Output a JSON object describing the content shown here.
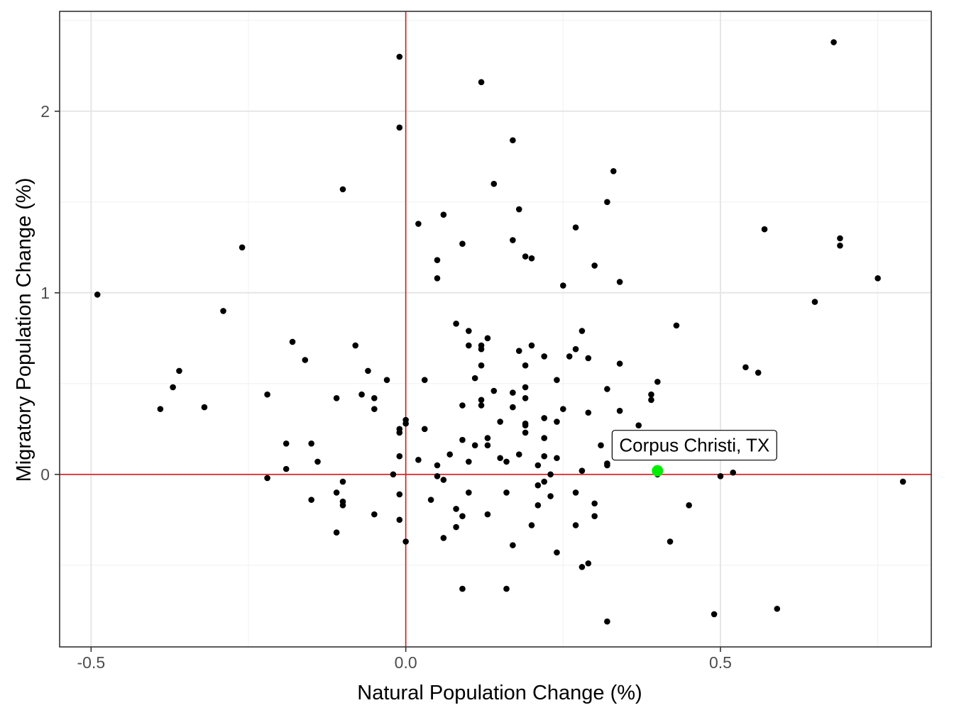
{
  "chart_data": {
    "type": "scatter",
    "xlabel": "Natural Population Change (%)",
    "ylabel": "Migratory Population Change (%)",
    "xlim": [
      -0.55,
      0.835
    ],
    "ylim": [
      -0.95,
      2.55
    ],
    "xticks": [
      -0.5,
      0.0,
      0.5
    ],
    "xtick_labels": [
      "-0.5",
      "0.0",
      "0.5"
    ],
    "yticks": [
      0,
      1,
      2
    ],
    "ytick_labels": [
      "0",
      "1",
      "2"
    ],
    "grid": true,
    "reference_lines": {
      "x": 0,
      "y": 0,
      "color": "#e31a1c"
    },
    "point_color": "#000000",
    "highlight": {
      "label": "Corpus Christi, TX",
      "x": 0.4,
      "y": 0.02,
      "color": "#00ee00"
    },
    "points": [
      [
        0.68,
        2.38
      ],
      [
        -0.01,
        2.3
      ],
      [
        0.12,
        2.16
      ],
      [
        -0.01,
        1.91
      ],
      [
        0.17,
        1.84
      ],
      [
        0.33,
        1.67
      ],
      [
        0.14,
        1.6
      ],
      [
        -0.1,
        1.57
      ],
      [
        0.32,
        1.5
      ],
      [
        0.18,
        1.46
      ],
      [
        0.06,
        1.43
      ],
      [
        0.02,
        1.38
      ],
      [
        0.27,
        1.36
      ],
      [
        0.57,
        1.35
      ],
      [
        0.69,
        1.3
      ],
      [
        0.17,
        1.29
      ],
      [
        0.09,
        1.27
      ],
      [
        0.69,
        1.26
      ],
      [
        -0.26,
        1.25
      ],
      [
        0.19,
        1.2
      ],
      [
        0.2,
        1.19
      ],
      [
        0.05,
        1.18
      ],
      [
        0.3,
        1.15
      ],
      [
        0.05,
        1.08
      ],
      [
        0.75,
        1.08
      ],
      [
        0.34,
        1.06
      ],
      [
        0.25,
        1.04
      ],
      [
        -0.49,
        0.99
      ],
      [
        0.65,
        0.95
      ],
      [
        -0.29,
        0.9
      ],
      [
        0.08,
        0.83
      ],
      [
        0.43,
        0.82
      ],
      [
        0.1,
        0.79
      ],
      [
        0.28,
        0.79
      ],
      [
        0.13,
        0.75
      ],
      [
        -0.18,
        0.73
      ],
      [
        0.12,
        0.71
      ],
      [
        -0.08,
        0.71
      ],
      [
        0.1,
        0.71
      ],
      [
        0.2,
        0.71
      ],
      [
        0.12,
        0.69
      ],
      [
        0.27,
        0.69
      ],
      [
        0.18,
        0.68
      ],
      [
        0.26,
        0.65
      ],
      [
        0.22,
        0.65
      ],
      [
        0.29,
        0.64
      ],
      [
        -0.16,
        0.63
      ],
      [
        0.34,
        0.61
      ],
      [
        0.12,
        0.6
      ],
      [
        0.19,
        0.6
      ],
      [
        0.54,
        0.59
      ],
      [
        -0.36,
        0.57
      ],
      [
        -0.06,
        0.57
      ],
      [
        0.56,
        0.56
      ],
      [
        0.11,
        0.53
      ],
      [
        0.03,
        0.52
      ],
      [
        -0.03,
        0.52
      ],
      [
        0.24,
        0.52
      ],
      [
        0.4,
        0.51
      ],
      [
        -0.37,
        0.48
      ],
      [
        0.19,
        0.48
      ],
      [
        0.32,
        0.47
      ],
      [
        0.14,
        0.46
      ],
      [
        0.17,
        0.45
      ],
      [
        -0.22,
        0.44
      ],
      [
        0.39,
        0.44
      ],
      [
        -0.07,
        0.44
      ],
      [
        -0.11,
        0.42
      ],
      [
        -0.05,
        0.42
      ],
      [
        0.19,
        0.42
      ],
      [
        0.39,
        0.41
      ],
      [
        0.12,
        0.41
      ],
      [
        0.09,
        0.38
      ],
      [
        0.12,
        0.38
      ],
      [
        0.17,
        0.37
      ],
      [
        -0.32,
        0.37
      ],
      [
        -0.39,
        0.36
      ],
      [
        -0.05,
        0.36
      ],
      [
        0.25,
        0.36
      ],
      [
        0.34,
        0.35
      ],
      [
        0.29,
        0.34
      ],
      [
        0.22,
        0.31
      ],
      [
        0.0,
        0.3
      ],
      [
        0.24,
        0.29
      ],
      [
        0.15,
        0.29
      ],
      [
        0.0,
        0.28
      ],
      [
        0.19,
        0.28
      ],
      [
        0.19,
        0.27
      ],
      [
        0.37,
        0.27
      ],
      [
        0.03,
        0.25
      ],
      [
        -0.01,
        0.25
      ],
      [
        -0.01,
        0.23
      ],
      [
        0.19,
        0.23
      ],
      [
        0.13,
        0.2
      ],
      [
        0.22,
        0.2
      ],
      [
        0.09,
        0.19
      ],
      [
        -0.19,
        0.17
      ],
      [
        -0.15,
        0.17
      ],
      [
        0.11,
        0.16
      ],
      [
        0.13,
        0.16
      ],
      [
        0.31,
        0.16
      ],
      [
        0.07,
        0.11
      ],
      [
        0.18,
        0.11
      ],
      [
        -0.01,
        0.1
      ],
      [
        0.22,
        0.1
      ],
      [
        0.15,
        0.09
      ],
      [
        0.24,
        0.09
      ],
      [
        0.02,
        0.08
      ],
      [
        0.16,
        0.07
      ],
      [
        -0.14,
        0.07
      ],
      [
        0.1,
        0.07
      ],
      [
        0.32,
        0.06
      ],
      [
        0.05,
        0.05
      ],
      [
        0.32,
        0.05
      ],
      [
        0.21,
        0.05
      ],
      [
        -0.19,
        0.03
      ],
      [
        0.28,
        0.02
      ],
      [
        0.52,
        0.01
      ],
      [
        -0.02,
        0.0
      ],
      [
        0.23,
        0.0
      ],
      [
        0.4,
        0.0
      ],
      [
        0.05,
        -0.01
      ],
      [
        0.5,
        -0.01
      ],
      [
        -0.22,
        -0.02
      ],
      [
        0.06,
        -0.03
      ],
      [
        0.22,
        -0.04
      ],
      [
        -0.1,
        -0.04
      ],
      [
        0.79,
        -0.04
      ],
      [
        0.21,
        -0.06
      ],
      [
        -0.11,
        -0.1
      ],
      [
        0.1,
        -0.1
      ],
      [
        0.16,
        -0.1
      ],
      [
        -0.01,
        -0.11
      ],
      [
        0.27,
        -0.1
      ],
      [
        0.23,
        -0.12
      ],
      [
        0.04,
        -0.14
      ],
      [
        -0.15,
        -0.14
      ],
      [
        -0.1,
        -0.15
      ],
      [
        0.3,
        -0.16
      ],
      [
        -0.1,
        -0.17
      ],
      [
        0.21,
        -0.17
      ],
      [
        0.45,
        -0.17
      ],
      [
        0.08,
        -0.19
      ],
      [
        -0.05,
        -0.22
      ],
      [
        0.09,
        -0.23
      ],
      [
        0.13,
        -0.22
      ],
      [
        0.3,
        -0.23
      ],
      [
        -0.01,
        -0.25
      ],
      [
        0.2,
        -0.28
      ],
      [
        0.27,
        -0.28
      ],
      [
        0.08,
        -0.29
      ],
      [
        -0.11,
        -0.32
      ],
      [
        0.06,
        -0.35
      ],
      [
        0.0,
        -0.37
      ],
      [
        0.42,
        -0.37
      ],
      [
        0.17,
        -0.39
      ],
      [
        0.24,
        -0.43
      ],
      [
        0.29,
        -0.49
      ],
      [
        0.28,
        -0.51
      ],
      [
        0.09,
        -0.63
      ],
      [
        0.16,
        -0.63
      ],
      [
        0.59,
        -0.74
      ],
      [
        0.49,
        -0.77
      ],
      [
        0.32,
        -0.81
      ]
    ]
  }
}
